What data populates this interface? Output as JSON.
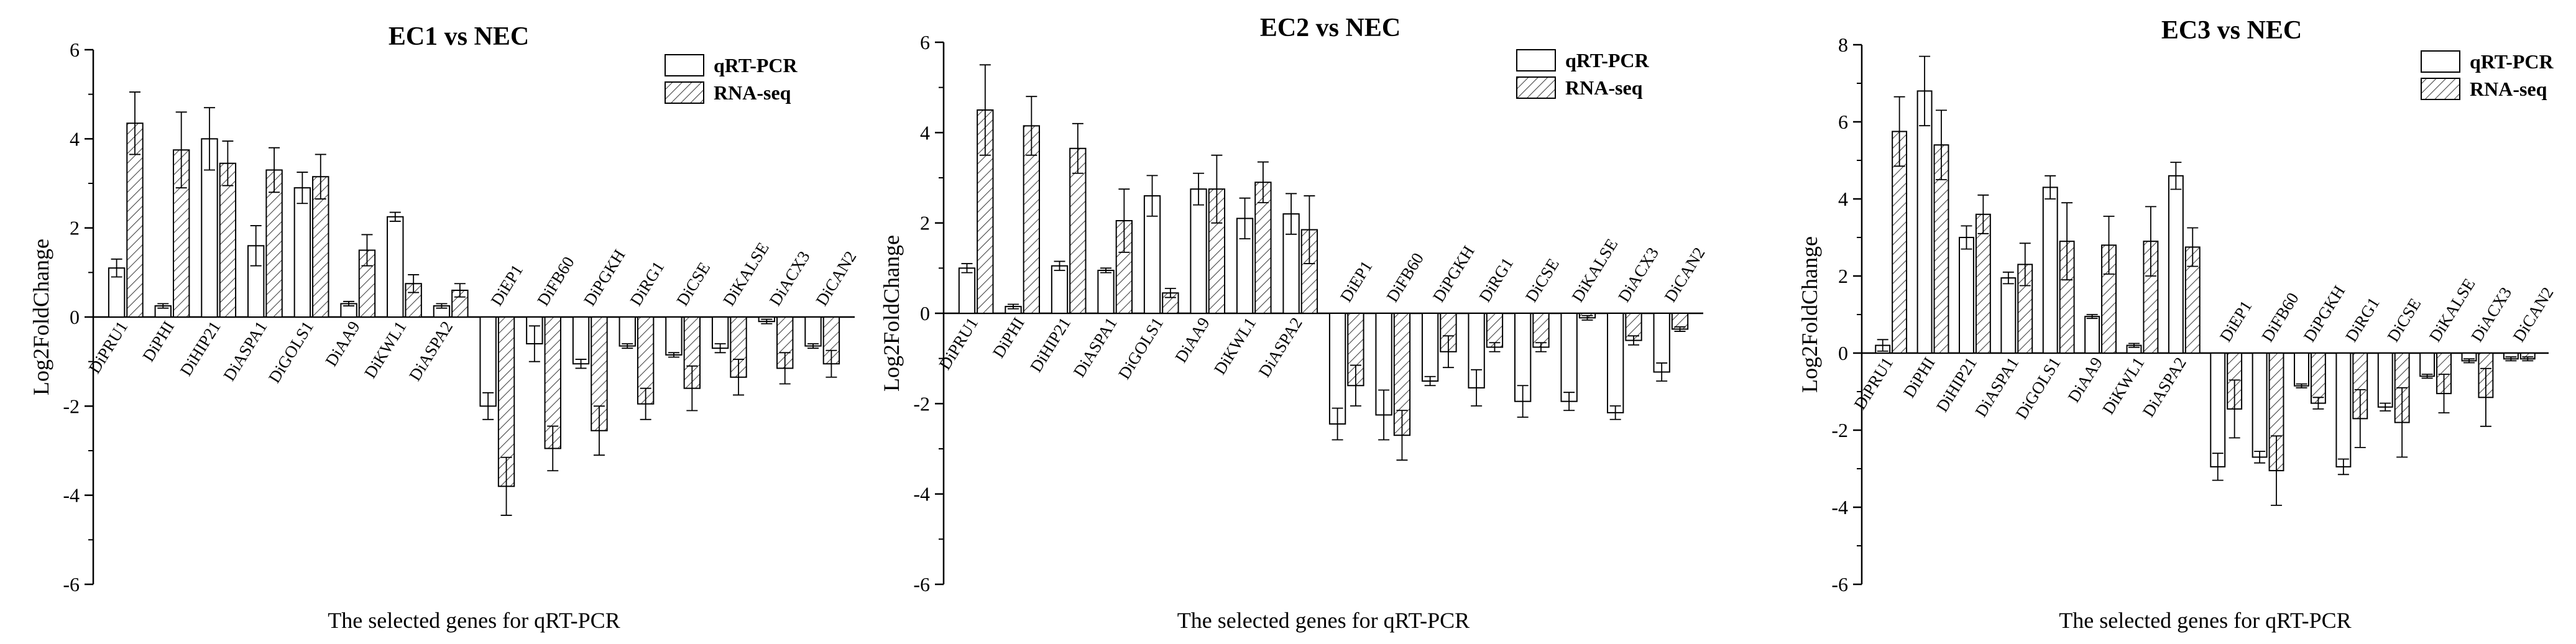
{
  "legend": {
    "series1": "qRT-PCR",
    "series2": "RNA-seq"
  },
  "chart_data": [
    {
      "type": "bar",
      "title": "EC1 vs NEC",
      "xlabel": "The selected genes for qRT-PCR",
      "ylabel": "Log2FoldChange",
      "ylim": [
        -6,
        6
      ],
      "yticks": [
        -6,
        -4,
        -2,
        0,
        2,
        4,
        6
      ],
      "legend_position": "top-right",
      "categories": [
        "DiPRU1",
        "DiPHI",
        "DiHIP21",
        "DiASPA1",
        "DiGOLS1",
        "DiAA9",
        "DiKWL1",
        "DiASPA2",
        "DiEP1",
        "DiFB60",
        "DiPGKH",
        "DiRG1",
        "DiCSE",
        "DiKALSE",
        "DiACX3",
        "DiCAN2"
      ],
      "series": [
        {
          "name": "qRT-PCR",
          "values": [
            1.1,
            0.25,
            4.0,
            1.6,
            2.9,
            0.3,
            2.25,
            0.25,
            -2.0,
            -0.6,
            -1.05,
            -0.65,
            -0.85,
            -0.7,
            -0.1,
            -0.65
          ],
          "errors": [
            0.2,
            0.05,
            0.7,
            0.45,
            0.35,
            0.05,
            0.1,
            0.05,
            0.3,
            0.4,
            0.1,
            0.05,
            0.05,
            0.1,
            0.05,
            0.05
          ]
        },
        {
          "name": "RNA-seq",
          "values": [
            4.35,
            3.75,
            3.45,
            3.3,
            3.15,
            1.5,
            0.75,
            0.6,
            -3.8,
            -2.95,
            -2.55,
            -1.95,
            -1.6,
            -1.35,
            -1.15,
            -1.05
          ],
          "errors": [
            0.7,
            0.85,
            0.5,
            0.5,
            0.5,
            0.35,
            0.2,
            0.15,
            0.65,
            0.5,
            0.55,
            0.35,
            0.5,
            0.4,
            0.35,
            0.3
          ]
        }
      ]
    },
    {
      "type": "bar",
      "title": "EC2 vs NEC",
      "xlabel": "The selected genes for qRT-PCR",
      "ylabel": "Log2FoldChange",
      "ylim": [
        -6,
        6
      ],
      "yticks": [
        -6,
        -4,
        -2,
        0,
        2,
        4,
        6
      ],
      "legend_position": "top-right",
      "categories": [
        "DiPRU1",
        "DiPHI",
        "DiHIP21",
        "DiASPA1",
        "DiGOLS1",
        "DiAA9",
        "DiKWL1",
        "DiASPA2",
        "DiEP1",
        "DiFB60",
        "DiPGKH",
        "DiRG1",
        "DiCSE",
        "DiKALSE",
        "DiACX3",
        "DiCAN2"
      ],
      "series": [
        {
          "name": "qRT-PCR",
          "values": [
            1.0,
            0.15,
            1.05,
            0.95,
            2.6,
            2.75,
            2.1,
            2.2,
            -2.45,
            -2.25,
            -1.5,
            -1.65,
            -1.95,
            -1.95,
            -2.2,
            -1.3
          ],
          "errors": [
            0.1,
            0.05,
            0.1,
            0.05,
            0.45,
            0.35,
            0.45,
            0.45,
            0.35,
            0.55,
            0.1,
            0.4,
            0.35,
            0.2,
            0.15,
            0.2
          ]
        },
        {
          "name": "RNA-seq",
          "values": [
            4.5,
            4.15,
            3.65,
            2.05,
            0.45,
            2.75,
            2.9,
            1.85,
            -1.6,
            -2.7,
            -0.85,
            -0.75,
            -0.75,
            -0.1,
            -0.6,
            -0.35
          ],
          "errors": [
            1.0,
            0.65,
            0.55,
            0.7,
            0.1,
            0.75,
            0.45,
            0.75,
            0.45,
            0.55,
            0.35,
            0.1,
            0.1,
            0.05,
            0.1,
            0.05
          ]
        }
      ]
    },
    {
      "type": "bar",
      "title": "EC3 vs NEC",
      "xlabel": "The selected genes for qRT-PCR",
      "ylabel": "Log2FoldChange",
      "ylim": [
        -6,
        8
      ],
      "yticks": [
        -6,
        -4,
        -2,
        0,
        2,
        4,
        6,
        8
      ],
      "legend_position": "top-right",
      "categories": [
        "DiPRU1",
        "DiPHI",
        "DiHIP21",
        "DiASPA1",
        "DiGOLS1",
        "DiAA9",
        "DiKWL1",
        "DiASPA2",
        "DiEP1",
        "DiFB60",
        "DiPGKH",
        "DiRG1",
        "DiCSE",
        "DiKALSE",
        "DiACX3",
        "DiCAN2"
      ],
      "series": [
        {
          "name": "qRT-PCR",
          "values": [
            0.2,
            6.8,
            3.0,
            1.95,
            4.3,
            0.95,
            0.2,
            4.6,
            -2.95,
            -2.7,
            -0.85,
            -2.95,
            -1.4,
            -0.6,
            -0.2,
            -0.15
          ],
          "errors": [
            0.15,
            0.9,
            0.3,
            0.15,
            0.3,
            0.05,
            0.05,
            0.35,
            0.35,
            0.15,
            0.05,
            0.2,
            0.1,
            0.05,
            0.05,
            0.05
          ]
        },
        {
          "name": "RNA-seq",
          "values": [
            5.75,
            5.4,
            3.6,
            2.3,
            2.9,
            2.8,
            2.9,
            2.75,
            -1.45,
            -3.05,
            -1.3,
            -1.7,
            -1.8,
            -1.05,
            -1.15,
            -0.15
          ],
          "errors": [
            0.9,
            0.9,
            0.5,
            0.55,
            1.0,
            0.75,
            0.9,
            0.5,
            0.75,
            0.9,
            0.15,
            0.75,
            0.9,
            0.5,
            0.75,
            0.05
          ]
        }
      ]
    }
  ]
}
